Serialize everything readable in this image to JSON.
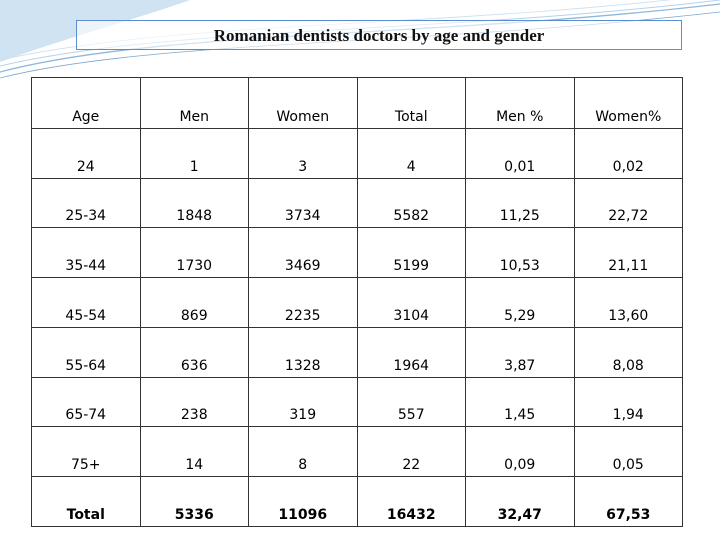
{
  "title": "Romanian dentists doctors by age and gender",
  "table": {
    "headers": [
      "Age",
      "Men",
      "Women",
      "Total",
      "Men %",
      "Women%"
    ],
    "rows": [
      [
        "24",
        "1",
        "3",
        "4",
        "0,01",
        "0,02"
      ],
      [
        "25-34",
        "1848",
        "3734",
        "5582",
        "11,25",
        "22,72"
      ],
      [
        "35-44",
        "1730",
        "3469",
        "5199",
        "10,53",
        "21,11"
      ],
      [
        "45-54",
        "869",
        "2235",
        "3104",
        "5,29",
        "13,60"
      ],
      [
        "55-64",
        "636",
        "1328",
        "1964",
        "3,87",
        "8,08"
      ],
      [
        "65-74",
        "238",
        "319",
        "557",
        "1,45",
        "1,94"
      ],
      [
        "75+",
        "14",
        "8",
        "22",
        "0,09",
        "0,05"
      ]
    ],
    "total": [
      "Total",
      "5336",
      "11096",
      "16432",
      "32,47",
      "67,53"
    ]
  },
  "colors": {
    "men_header": "#1f3fa6",
    "women_header": "#cc0000",
    "border": "#333333",
    "accent": "#5b8ed0"
  }
}
